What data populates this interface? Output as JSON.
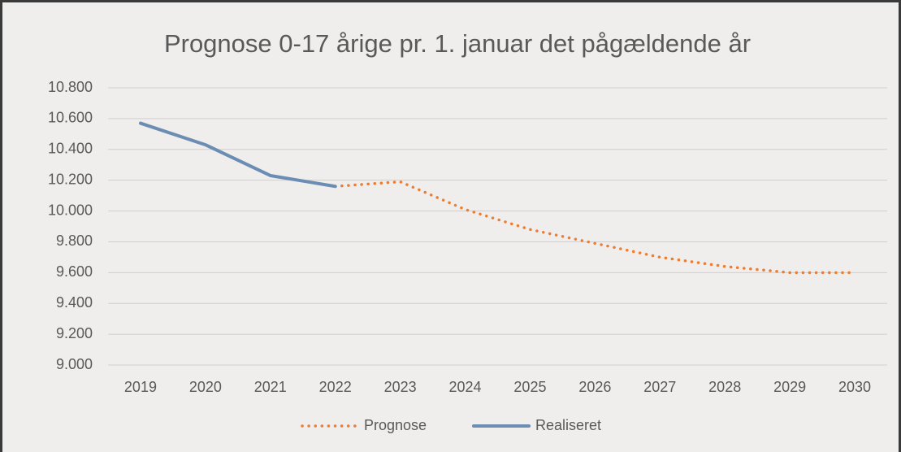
{
  "chart_data": {
    "type": "line",
    "title": "Prognose 0-17 årige pr. 1. januar det pågældende år",
    "categories": [
      "2019",
      "2020",
      "2021",
      "2022",
      "2023",
      "2024",
      "2025",
      "2026",
      "2027",
      "2028",
      "2029",
      "2030"
    ],
    "series": [
      {
        "name": "Prognose",
        "color": "#ed7d31",
        "dashed": true,
        "values": [
          null,
          null,
          null,
          10160,
          10190,
          10010,
          9880,
          9790,
          9700,
          9640,
          9600,
          9600
        ]
      },
      {
        "name": "Realiseret",
        "color": "#6b8cb3",
        "dashed": false,
        "values": [
          10570,
          10430,
          10230,
          10160,
          null,
          null,
          null,
          null,
          null,
          null,
          null,
          null
        ]
      }
    ],
    "ylim": [
      9000,
      10800
    ],
    "yticks": [
      {
        "value": 9000,
        "label": "9.000"
      },
      {
        "value": 9200,
        "label": "9.200"
      },
      {
        "value": 9400,
        "label": "9.400"
      },
      {
        "value": 9600,
        "label": "9.600"
      },
      {
        "value": 9800,
        "label": "9.800"
      },
      {
        "value": 10000,
        "label": "10.000"
      },
      {
        "value": 10200,
        "label": "10.200"
      },
      {
        "value": 10400,
        "label": "10.400"
      },
      {
        "value": 10600,
        "label": "10.600"
      },
      {
        "value": 10800,
        "label": "10.800"
      }
    ],
    "grid": true,
    "legend": "bottom"
  }
}
